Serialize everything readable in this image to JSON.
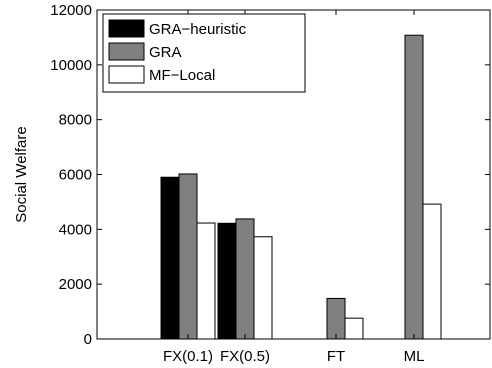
{
  "chart_data": {
    "type": "bar",
    "title": "",
    "xlabel": "",
    "ylabel": "Social Welfare",
    "ylim": [
      0,
      12000
    ],
    "yticks": [
      0,
      2000,
      4000,
      6000,
      8000,
      10000,
      12000
    ],
    "grid": false,
    "legend_position": "top-left",
    "categories": [
      "FX(0.1)",
      "FX(0.5)",
      "FT",
      "ML"
    ],
    "series": [
      {
        "name": "GRA−heuristic",
        "color": "#000000",
        "values": [
          5900,
          4220,
          0,
          0
        ]
      },
      {
        "name": "GRA",
        "color": "#808080",
        "values": [
          6020,
          4380,
          1480,
          11080
        ]
      },
      {
        "name": "MF−Local",
        "color": "#ffffff",
        "values": [
          4230,
          3730,
          760,
          4920
        ]
      }
    ]
  }
}
